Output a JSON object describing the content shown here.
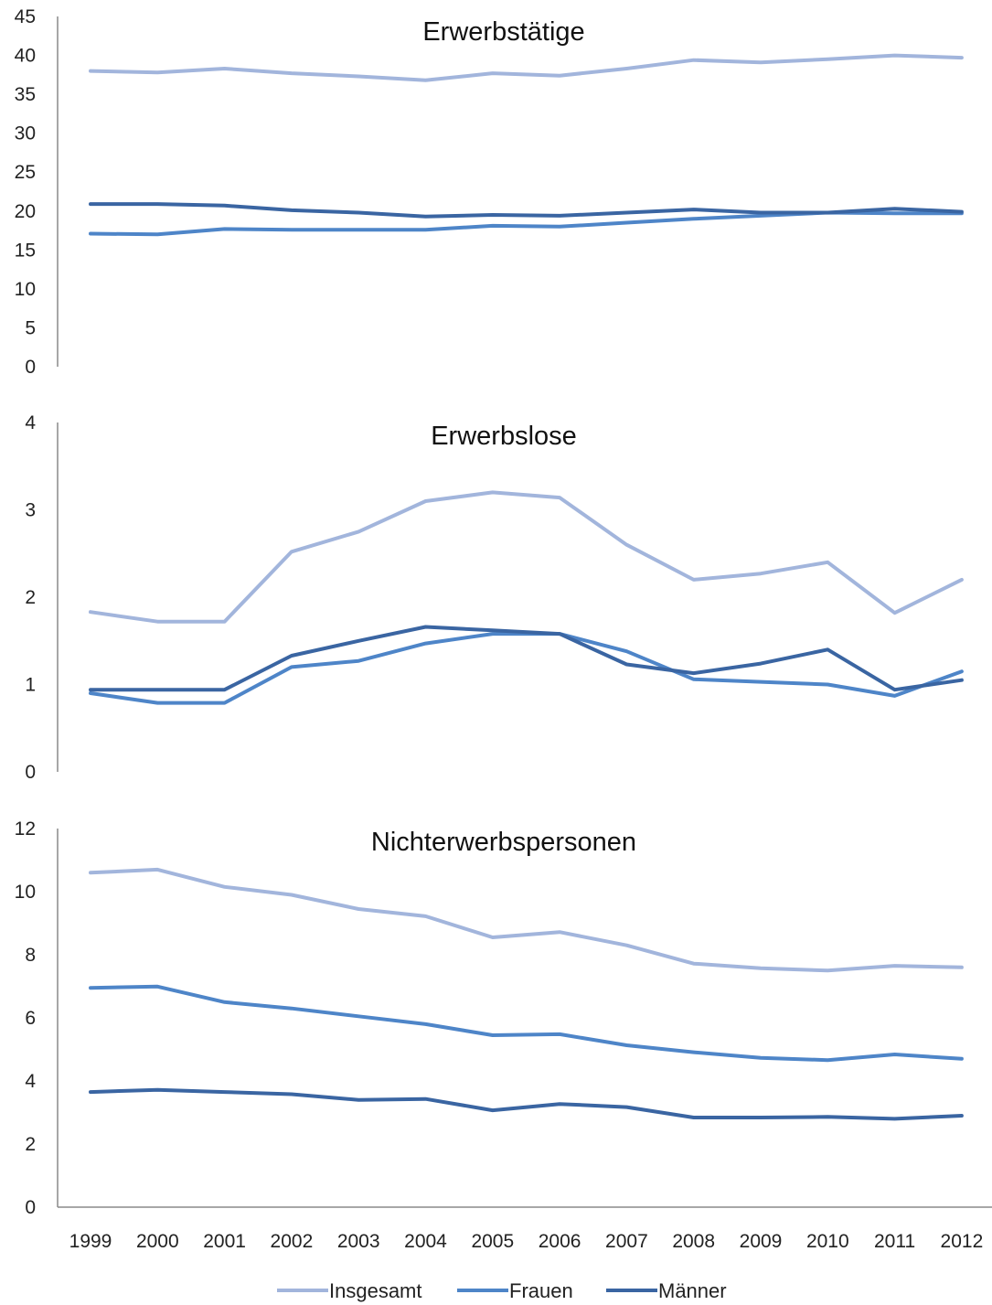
{
  "colors": {
    "Insgesamt": "#a2b5dc",
    "Frauen": "#4e85c8",
    "Männer": "#3a65a2",
    "axis": "#8a8a8a"
  },
  "legend": [
    "Insgesamt",
    "Frauen",
    "Männer"
  ],
  "chart_data": [
    {
      "type": "line",
      "title": "Erwerbstätige",
      "x": [
        "1999",
        "2000",
        "2001",
        "2002",
        "2003",
        "2004",
        "2005",
        "2006",
        "2007",
        "2008",
        "2009",
        "2010",
        "2011",
        "2012"
      ],
      "ylim": [
        0,
        45
      ],
      "yticks": [
        0,
        5,
        10,
        15,
        20,
        25,
        30,
        35,
        40,
        45
      ],
      "grid": false,
      "legend_position": "bottom",
      "series": [
        {
          "name": "Insgesamt",
          "values": [
            38.0,
            37.8,
            38.3,
            37.7,
            37.3,
            36.8,
            37.7,
            37.4,
            38.3,
            39.4,
            39.1,
            39.5,
            40.0,
            39.7
          ]
        },
        {
          "name": "Frauen",
          "values": [
            17.1,
            17.0,
            17.7,
            17.6,
            17.6,
            17.6,
            18.1,
            18.0,
            18.5,
            19.0,
            19.4,
            19.8,
            19.7,
            19.7
          ]
        },
        {
          "name": "Männer",
          "values": [
            20.9,
            20.9,
            20.7,
            20.1,
            19.8,
            19.3,
            19.5,
            19.4,
            19.8,
            20.2,
            19.8,
            19.8,
            20.3,
            19.9
          ]
        }
      ]
    },
    {
      "type": "line",
      "title": "Erwerbslose",
      "x": [
        "1999",
        "2000",
        "2001",
        "2002",
        "2003",
        "2004",
        "2005",
        "2006",
        "2007",
        "2008",
        "2009",
        "2010",
        "2011",
        "2012"
      ],
      "ylim": [
        0,
        4
      ],
      "yticks": [
        0,
        1,
        2,
        3,
        4
      ],
      "grid": false,
      "legend_position": "bottom",
      "series": [
        {
          "name": "Insgesamt",
          "values": [
            1.83,
            1.72,
            1.72,
            2.52,
            2.75,
            3.1,
            3.2,
            3.14,
            2.6,
            2.2,
            2.27,
            2.4,
            1.82,
            2.2
          ]
        },
        {
          "name": "Frauen",
          "values": [
            0.9,
            0.79,
            0.79,
            1.2,
            1.27,
            1.47,
            1.58,
            1.58,
            1.38,
            1.06,
            1.03,
            1.0,
            0.87,
            1.15
          ]
        },
        {
          "name": "Männer",
          "values": [
            0.94,
            0.94,
            0.94,
            1.33,
            1.5,
            1.66,
            1.62,
            1.58,
            1.23,
            1.13,
            1.24,
            1.4,
            0.94,
            1.05
          ]
        }
      ]
    },
    {
      "type": "line",
      "title": "Nichterwerbspersonen",
      "x": [
        "1999",
        "2000",
        "2001",
        "2002",
        "2003",
        "2004",
        "2005",
        "2006",
        "2007",
        "2008",
        "2009",
        "2010",
        "2011",
        "2012"
      ],
      "ylim": [
        0,
        12
      ],
      "yticks": [
        0,
        2,
        4,
        6,
        8,
        10,
        12
      ],
      "grid": false,
      "legend_position": "bottom",
      "series": [
        {
          "name": "Insgesamt",
          "values": [
            10.6,
            10.7,
            10.15,
            9.9,
            9.45,
            9.22,
            8.55,
            8.72,
            8.3,
            7.72,
            7.57,
            7.5,
            7.65,
            7.6
          ]
        },
        {
          "name": "Frauen",
          "values": [
            6.95,
            6.99,
            6.5,
            6.3,
            6.05,
            5.8,
            5.45,
            5.48,
            5.13,
            4.91,
            4.73,
            4.66,
            4.84,
            4.7
          ]
        },
        {
          "name": "Männer",
          "values": [
            3.65,
            3.72,
            3.65,
            3.58,
            3.4,
            3.43,
            3.07,
            3.27,
            3.17,
            2.84,
            2.84,
            2.86,
            2.8,
            2.9
          ]
        }
      ]
    }
  ]
}
